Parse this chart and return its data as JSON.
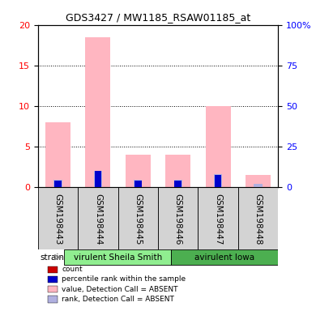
{
  "title": "GDS3427 / MW1185_RSAW01185_at",
  "samples": [
    "GSM198443",
    "GSM198444",
    "GSM198445",
    "GSM198446",
    "GSM198447",
    "GSM198448"
  ],
  "groups": [
    {
      "label": "virulent Sheila Smith",
      "color": "#90EE90",
      "samples": [
        0,
        1,
        2
      ]
    },
    {
      "label": "avirulent Iowa",
      "color": "#4CAF50",
      "samples": [
        3,
        4,
        5
      ]
    }
  ],
  "count_values": [
    0,
    0,
    0,
    0,
    0,
    0
  ],
  "percentile_rank_values": [
    4,
    10,
    4,
    4,
    7.5,
    0
  ],
  "absent_value_values": [
    8,
    18.5,
    4,
    4,
    10,
    1.5
  ],
  "absent_rank_values": [
    4.2,
    10,
    4.2,
    4.2,
    7.8,
    1.8
  ],
  "bar_width": 0.35,
  "ylim_left": [
    0,
    20
  ],
  "ylim_right": [
    0,
    100
  ],
  "yticks_left": [
    0,
    5,
    10,
    15,
    20
  ],
  "yticks_right": [
    0,
    25,
    50,
    75,
    100
  ],
  "ytick_labels_right": [
    "0",
    "25",
    "50",
    "75",
    "100%"
  ],
  "color_count": "#cc0000",
  "color_percentile": "#0000cc",
  "color_absent_value": "#FFB6C1",
  "color_absent_rank": "#b0b0e0",
  "bg_color": "#d3d3d3",
  "legend_items": [
    {
      "color": "#cc0000",
      "label": "count"
    },
    {
      "color": "#0000cc",
      "label": "percentile rank within the sample"
    },
    {
      "color": "#FFB6C1",
      "label": "value, Detection Call = ABSENT"
    },
    {
      "color": "#b0b0e0",
      "label": "rank, Detection Call = ABSENT"
    }
  ]
}
